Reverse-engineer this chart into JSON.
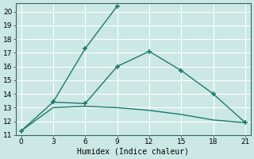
{
  "xlabel": "Humidex (Indice chaleur)",
  "line1_x": [
    0,
    3,
    6,
    9
  ],
  "line1_y": [
    11.3,
    13.4,
    17.3,
    20.4
  ],
  "line2_x": [
    3,
    6,
    9,
    12,
    15,
    18,
    21
  ],
  "line2_y": [
    13.4,
    13.3,
    16.0,
    17.1,
    15.7,
    14.0,
    11.9
  ],
  "line3_x": [
    0,
    3,
    6,
    9,
    12,
    15,
    18,
    21
  ],
  "line3_y": [
    11.3,
    13.0,
    13.1,
    13.0,
    12.8,
    12.5,
    12.1,
    11.9
  ],
  "line_color": "#1a7a6e",
  "bg_color": "#cce8e4",
  "grid_color": "#ffffff",
  "xlim": [
    -0.5,
    21.5
  ],
  "ylim": [
    11,
    20.6
  ],
  "xticks": [
    0,
    3,
    6,
    9,
    12,
    15,
    18,
    21
  ],
  "yticks": [
    11,
    12,
    13,
    14,
    15,
    16,
    17,
    18,
    19,
    20
  ],
  "marker": "+"
}
